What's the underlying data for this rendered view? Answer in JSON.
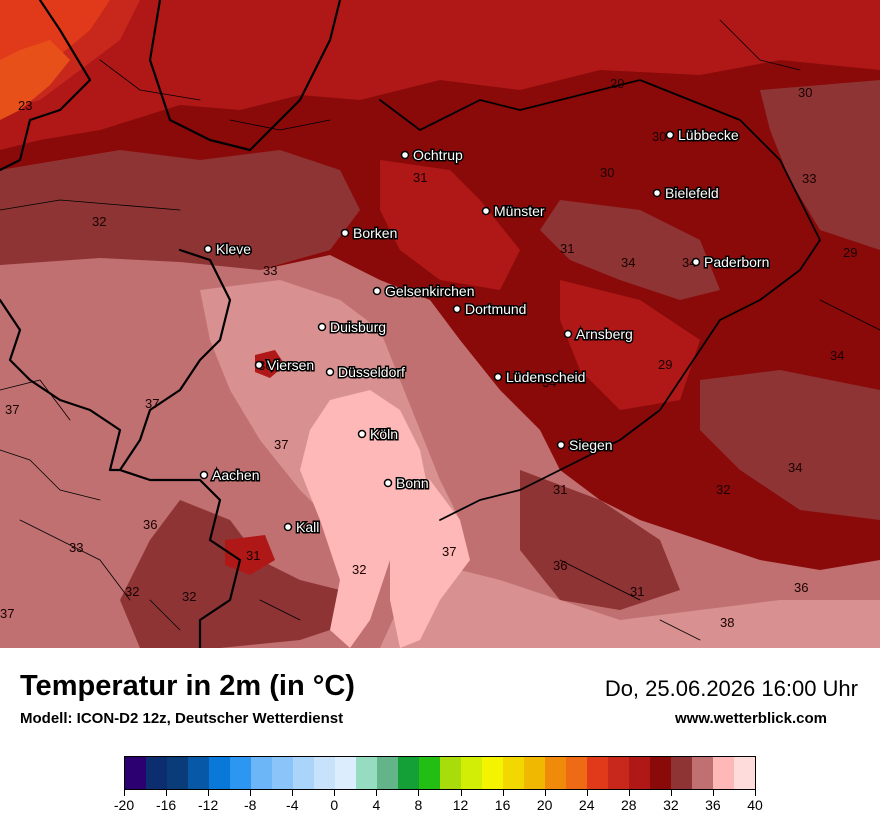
{
  "title": "Temperatur in 2m (in °C)",
  "model": "Modell: ICON-D2 12z, Deutscher Wetterdienst",
  "datetime": "Do, 25.06.2026 16:00 Uhr",
  "website": "www.wetterblick.com",
  "colors": {
    "t22": "#e8501a",
    "t24": "#e03a1a",
    "t26": "#c8281c",
    "t28": "#b01818",
    "t30": "#8a0a0a",
    "t32": "#8e3434",
    "t34": "#c07070",
    "t36": "#d89090",
    "t38": "#ffb8b8",
    "border": "#000000"
  },
  "cities": [
    {
      "name": "Ochtrup"
    },
    {
      "name": "Lübbecke"
    },
    {
      "name": "Bielefeld"
    },
    {
      "name": "Münster"
    },
    {
      "name": "Borken"
    },
    {
      "name": "Kleve"
    },
    {
      "name": "Paderborn"
    },
    {
      "name": "Gelsenkirchen"
    },
    {
      "name": "Dortmund"
    },
    {
      "name": "Duisburg"
    },
    {
      "name": "Arnsberg"
    },
    {
      "name": "Viersen"
    },
    {
      "name": "Düsseldorf"
    },
    {
      "name": "Lüdenscheid"
    },
    {
      "name": "Köln"
    },
    {
      "name": "Siegen"
    },
    {
      "name": "Aachen"
    },
    {
      "name": "Bonn"
    },
    {
      "name": "Kall"
    }
  ],
  "isolabels": [
    {
      "value": "23"
    },
    {
      "value": "29"
    },
    {
      "value": "30"
    },
    {
      "value": "30"
    },
    {
      "value": "30"
    },
    {
      "value": "31"
    },
    {
      "value": "33"
    },
    {
      "value": "32"
    },
    {
      "value": "31"
    },
    {
      "value": "34"
    },
    {
      "value": "34"
    },
    {
      "value": "29"
    },
    {
      "value": "33"
    },
    {
      "value": "34"
    },
    {
      "value": "29"
    },
    {
      "value": "36"
    },
    {
      "value": "34"
    },
    {
      "value": "37"
    },
    {
      "value": "37"
    },
    {
      "value": "37"
    },
    {
      "value": "34"
    },
    {
      "value": "32"
    },
    {
      "value": "31"
    },
    {
      "value": "36"
    },
    {
      "value": "33"
    },
    {
      "value": "31"
    },
    {
      "value": "32"
    },
    {
      "value": "37"
    },
    {
      "value": "36"
    },
    {
      "value": "32"
    },
    {
      "value": "32"
    },
    {
      "value": "31"
    },
    {
      "value": "36"
    },
    {
      "value": "37"
    },
    {
      "value": "38"
    }
  ],
  "legend": {
    "colors": [
      "#2c0070",
      "#0c2e6e",
      "#0a3c7a",
      "#0858a8",
      "#0a78d8",
      "#2c96f0",
      "#6cb6f8",
      "#8ac4f8",
      "#aad4fa",
      "#c8e2fc",
      "#dceefe",
      "#96dcc0",
      "#64b48a",
      "#14a036",
      "#22be14",
      "#a8dc0a",
      "#d2ee06",
      "#f4f400",
      "#f2d800",
      "#f0b800",
      "#f08a0a",
      "#ee6a14",
      "#e03a1a",
      "#c8281c",
      "#b01818",
      "#8a0a0a",
      "#8e3434",
      "#c07070",
      "#ffb8b8",
      "#ffdcdc"
    ],
    "tick_labels": [
      "-20",
      "-16",
      "-12",
      "-8",
      "-4",
      "0",
      "4",
      "8",
      "12",
      "16",
      "20",
      "24",
      "28",
      "32",
      "36",
      "40"
    ]
  }
}
